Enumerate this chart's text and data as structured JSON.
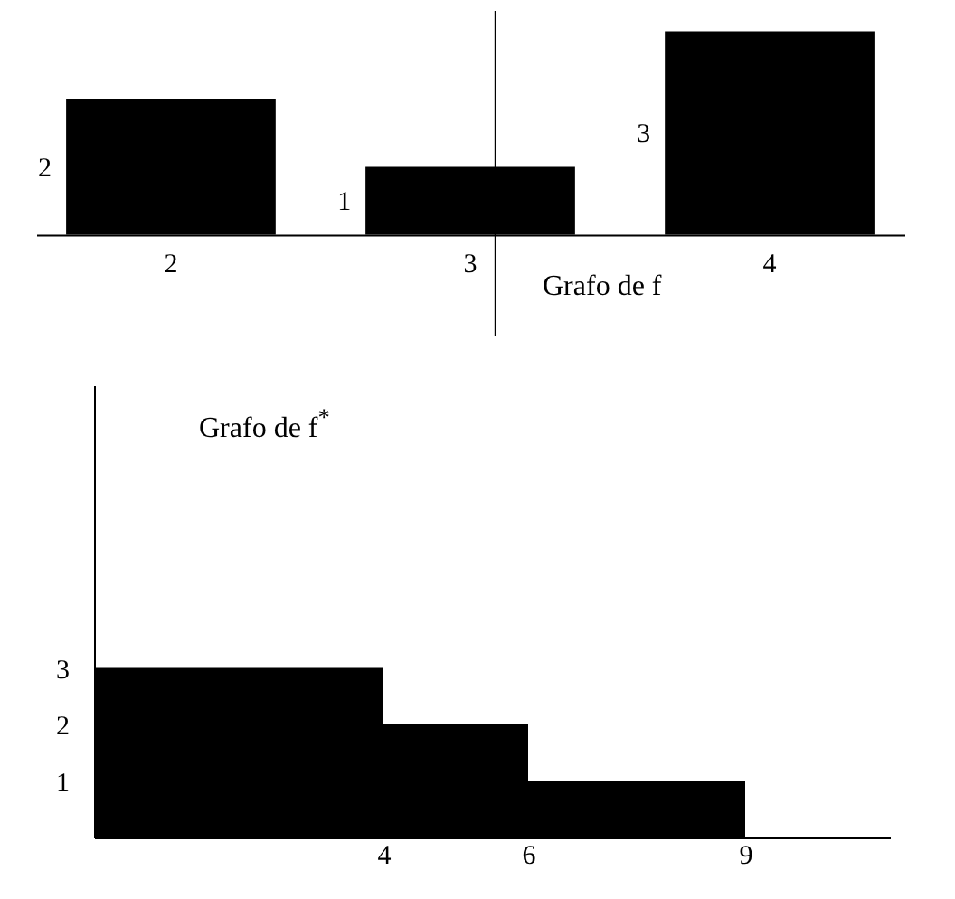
{
  "chart_data": [
    {
      "type": "bar",
      "title": "Grafo de f",
      "categories": [
        "2",
        "3",
        "4"
      ],
      "values": [
        2,
        1,
        3
      ],
      "data_labels": true,
      "color": "#000000",
      "ylim": [
        -1.5,
        3.3
      ],
      "tick_labels": "x",
      "ref_lines": [
        {
          "axis": "x",
          "value": "3"
        }
      ]
    },
    {
      "type": "histogram",
      "title": "Grafo de f$^{*}$",
      "bins": [
        0,
        4,
        6,
        9
      ],
      "values": [
        3,
        2,
        1
      ],
      "color": "#000000",
      "xlim": [
        0,
        11
      ],
      "ylim": [
        0,
        8
      ],
      "xticks": [
        4,
        6,
        9
      ],
      "yticks": [
        1,
        2,
        3
      ]
    }
  ]
}
